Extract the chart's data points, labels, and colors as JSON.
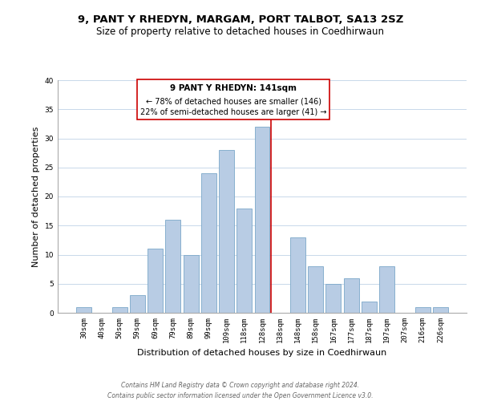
{
  "title": "9, PANT Y RHEDYN, MARGAM, PORT TALBOT, SA13 2SZ",
  "subtitle": "Size of property relative to detached houses in Coedhirwaun",
  "xlabel": "Distribution of detached houses by size in Coedhirwaun",
  "ylabel": "Number of detached properties",
  "bar_labels": [
    "30sqm",
    "40sqm",
    "50sqm",
    "59sqm",
    "69sqm",
    "79sqm",
    "89sqm",
    "99sqm",
    "109sqm",
    "118sqm",
    "128sqm",
    "138sqm",
    "148sqm",
    "158sqm",
    "167sqm",
    "177sqm",
    "187sqm",
    "197sqm",
    "207sqm",
    "216sqm",
    "226sqm"
  ],
  "bar_values": [
    1,
    0,
    1,
    3,
    11,
    16,
    10,
    24,
    28,
    18,
    32,
    0,
    13,
    8,
    5,
    6,
    2,
    8,
    0,
    1,
    1
  ],
  "bar_color": "#b8cce4",
  "bar_edge_color": "#7ba7c9",
  "reference_line_x_label": "138sqm",
  "reference_line_color": "#cc0000",
  "ylim": [
    0,
    40
  ],
  "yticks": [
    0,
    5,
    10,
    15,
    20,
    25,
    30,
    35,
    40
  ],
  "annotation_title": "9 PANT Y RHEDYN: 141sqm",
  "annotation_line1": "← 78% of detached houses are smaller (146)",
  "annotation_line2": "22% of semi-detached houses are larger (41) →",
  "annotation_box_color": "#ffffff",
  "annotation_box_edge": "#cc0000",
  "footer_line1": "Contains HM Land Registry data © Crown copyright and database right 2024.",
  "footer_line2": "Contains public sector information licensed under the Open Government Licence v3.0.",
  "bg_color": "#ffffff",
  "grid_color": "#c8d8ea",
  "title_fontsize": 9.5,
  "subtitle_fontsize": 8.5,
  "ylabel_fontsize": 8,
  "xlabel_fontsize": 8,
  "tick_fontsize": 6.5,
  "annotation_title_fontsize": 7.5,
  "annotation_text_fontsize": 7,
  "footer_fontsize": 5.5
}
